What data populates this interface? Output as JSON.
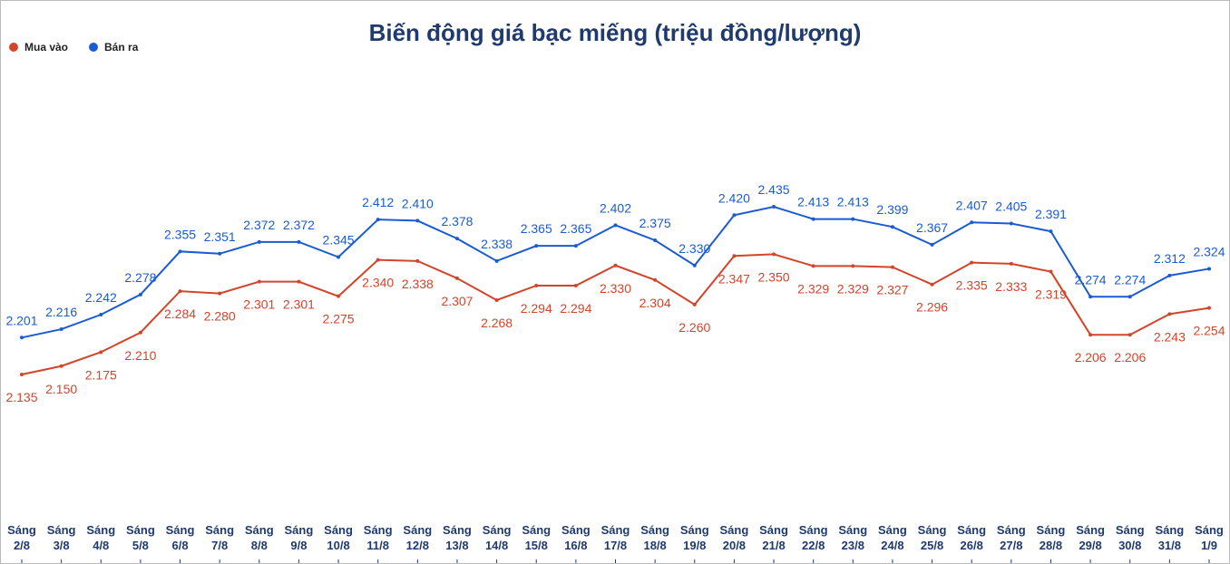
{
  "chart_data": {
    "type": "line",
    "title": "Biến động giá bạc miếng (triệu đồng/lượng)",
    "categories": [
      "Sáng 2/8",
      "Sáng 3/8",
      "Sáng 4/8",
      "Sáng 5/8",
      "Sáng 6/8",
      "Sáng 7/8",
      "Sáng 8/8",
      "Sáng 9/8",
      "Sáng 10/8",
      "Sáng 11/8",
      "Sáng 12/8",
      "Sáng 13/8",
      "Sáng 14/8",
      "Sáng 15/8",
      "Sáng 16/8",
      "Sáng 17/8",
      "Sáng 18/8",
      "Sáng 19/8",
      "Sáng 20/8",
      "Sáng 21/8",
      "Sáng 22/8",
      "Sáng 23/8",
      "Sáng 24/8",
      "Sáng 25/8",
      "Sáng 26/8",
      "Sáng 27/8",
      "Sáng 28/8",
      "Sáng 29/8",
      "Sáng 30/8",
      "Sáng 31/8",
      "Sáng 1/9"
    ],
    "series": [
      {
        "name": "Mua vào",
        "color": "#d2452b",
        "values": [
          2.135,
          2.15,
          2.175,
          2.21,
          2.284,
          2.28,
          2.301,
          2.301,
          2.275,
          2.34,
          2.338,
          2.307,
          2.268,
          2.294,
          2.294,
          2.33,
          2.304,
          2.26,
          2.347,
          2.35,
          2.329,
          2.329,
          2.327,
          2.296,
          2.335,
          2.333,
          2.319,
          2.206,
          2.206,
          2.243,
          2.254
        ],
        "value_labels": [
          "2.135",
          "2.150",
          "2.175",
          "2.210",
          "2.284",
          "2.280",
          "2.301",
          "2.301",
          "2.275",
          "2.340",
          "2.338",
          "2.307",
          "2.268",
          "2.294",
          "2.294",
          "2.330",
          "2.304",
          "2.260",
          "2.347",
          "2.350",
          "2.329",
          "2.329",
          "2.327",
          "2.296",
          "2.335",
          "2.333",
          "2.319",
          "2.206",
          "2.206",
          "2.243",
          "2.254"
        ]
      },
      {
        "name": "Bán ra",
        "color": "#1b5bd2",
        "values": [
          2.201,
          2.216,
          2.242,
          2.278,
          2.355,
          2.351,
          2.372,
          2.372,
          2.345,
          2.412,
          2.41,
          2.378,
          2.338,
          2.365,
          2.365,
          2.402,
          2.375,
          2.33,
          2.42,
          2.435,
          2.413,
          2.413,
          2.399,
          2.367,
          2.407,
          2.405,
          2.391,
          2.274,
          2.274,
          2.312,
          2.324
        ],
        "value_labels": [
          "2.201",
          "2.216",
          "2.242",
          "2.278",
          "2.355",
          "2.351",
          "2.372",
          "2.372",
          "2.345",
          "2.412",
          "2.410",
          "2.378",
          "2.338",
          "2.365",
          "2.365",
          "2.402",
          "2.375",
          "2.330",
          "2.420",
          "2.435",
          "2.413",
          "2.413",
          "2.399",
          "2.367",
          "2.407",
          "2.405",
          "2.391",
          "2.274",
          "2.274",
          "2.312",
          "2.324"
        ]
      }
    ]
  }
}
